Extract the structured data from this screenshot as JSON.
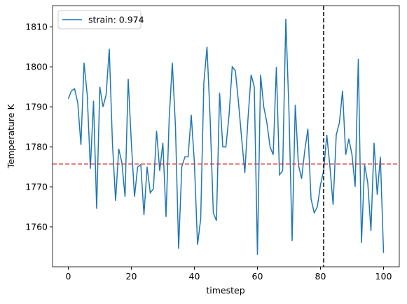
{
  "chart_data": {
    "type": "line",
    "x_label": "timestep",
    "y_label": "Temperature K",
    "x": [
      0,
      1,
      2,
      3,
      4,
      5,
      6,
      7,
      8,
      9,
      10,
      11,
      12,
      13,
      14,
      15,
      16,
      17,
      18,
      19,
      20,
      21,
      22,
      23,
      24,
      25,
      26,
      27,
      28,
      29,
      30,
      31,
      32,
      33,
      34,
      35,
      36,
      37,
      38,
      39,
      40,
      41,
      42,
      43,
      44,
      45,
      46,
      47,
      48,
      49,
      50,
      51,
      52,
      53,
      54,
      55,
      56,
      57,
      58,
      59,
      60,
      61,
      62,
      63,
      64,
      65,
      66,
      67,
      68,
      69,
      70,
      71,
      72,
      73,
      74,
      75,
      76,
      77,
      78,
      79,
      80,
      81,
      82,
      83,
      84,
      85,
      86,
      87,
      88,
      89,
      90,
      91,
      92,
      93,
      94,
      95,
      96,
      97,
      98,
      99,
      100
    ],
    "series": [
      {
        "name": "strain: 0.974",
        "color": "#1f77b4",
        "values": [
          1792,
          1794,
          1794.5,
          1791,
          1780.5,
          1801,
          1793,
          1774.5,
          1791.5,
          1764.5,
          1795,
          1790,
          1793,
          1804.5,
          1781,
          1766.5,
          1779.5,
          1776,
          1767.5,
          1797,
          1781,
          1767.5,
          1775,
          1775.5,
          1763,
          1775,
          1768.5,
          1769.5,
          1784,
          1774,
          1781,
          1762.5,
          1787,
          1801,
          1785,
          1754.5,
          1775,
          1777.5,
          1777.5,
          1788,
          1776,
          1755.5,
          1762,
          1796,
          1805,
          1787,
          1763.5,
          1761.5,
          1793.5,
          1780,
          1780,
          1788,
          1800,
          1799,
          1791,
          1782,
          1773.5,
          1787,
          1798,
          1795,
          1753,
          1798,
          1790,
          1786,
          1780,
          1778,
          1800,
          1773,
          1774,
          1812,
          1789,
          1756.5,
          1790.5,
          1775.5,
          1772,
          1779,
          1784.5,
          1767,
          1763.5,
          1765,
          1770.5,
          1774,
          1783,
          1775,
          1765.5,
          1783,
          1786,
          1794,
          1778,
          1782,
          1778,
          1770,
          1802,
          1756,
          1775.5,
          1771,
          1759,
          1781,
          1768,
          1777.5,
          1753.5
        ]
      }
    ],
    "hline": {
      "y": 1775.7,
      "color": "#d62728"
    },
    "vline": {
      "x": 81,
      "color": "#000000"
    },
    "xlim": [
      -5,
      105
    ],
    "xticks": [
      0,
      20,
      40,
      60,
      80,
      100
    ],
    "ylim": [
      1750,
      1815.3
    ],
    "yticks": [
      1760,
      1770,
      1780,
      1790,
      1800,
      1810
    ],
    "legend": "upper left",
    "grid": false
  }
}
